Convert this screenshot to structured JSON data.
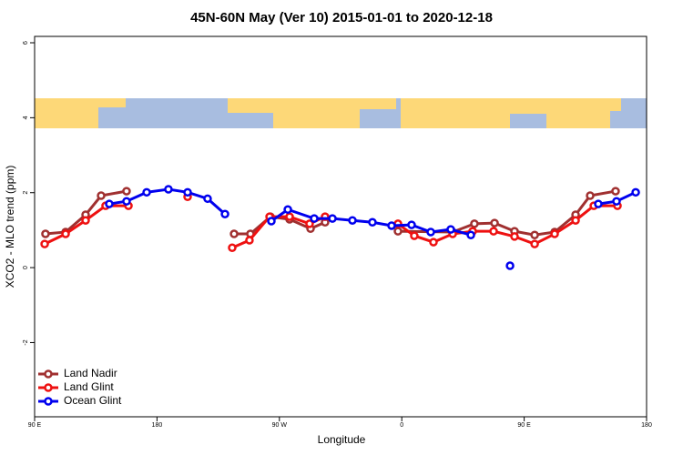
{
  "chart_data": {
    "type": "line",
    "title": "45N-60N May (Ver 10)   2015-01-01 to 2020-12-18",
    "x_label": "Longitude",
    "y_label": "XCO2 - MLO trend (ppm)",
    "xlim": [
      90,
      540
    ],
    "ylim": [
      -3.98,
      6.17
    ],
    "xticks": [
      {
        "value": 90,
        "label": "90 E"
      },
      180,
      {
        "value": 270,
        "label": "90 W"
      },
      {
        "value": 360,
        "label": "0"
      },
      {
        "value": 450,
        "label": "90 E"
      },
      {
        "value": 540,
        "label": "180"
      }
    ],
    "yticks": [
      -2,
      0,
      2,
      4,
      6
    ],
    "legend": "bottom-left",
    "series": [
      {
        "name": "Land Nadir",
        "color": "#a03030",
        "x": [
          98,
          112.8,
          127.5,
          138.9,
          157.6,
          null,
          236.7,
          248.7,
          263.4,
          277.5,
          292.9,
          303.6,
          null,
          357.2,
          397.4,
          413.4,
          428.2,
          442.9,
          457.7,
          472.4,
          487.8,
          498.5,
          517.2
        ],
        "values": [
          0.9,
          0.95,
          1.41,
          1.92,
          2.04,
          null,
          0.9,
          0.9,
          1.36,
          1.29,
          1.04,
          1.21,
          null,
          0.97,
          0.95,
          1.17,
          1.19,
          0.97,
          0.87,
          0.95,
          1.41,
          1.92,
          2.04
        ]
      },
      {
        "name": "Land Glint",
        "color": "#ee1111",
        "x": [
          97.4,
          112.8,
          127.5,
          142.2,
          159,
          null,
          202.5,
          null,
          235.3,
          248,
          262.8,
          277.5,
          292.2,
          303.6,
          null,
          357.2,
          369.2,
          383.3,
          397.4,
          412.1,
          427.5,
          442.9,
          457.7,
          472.4,
          487.8,
          501.2,
          518.6
        ],
        "values": [
          0.63,
          0.9,
          1.26,
          1.65,
          1.65,
          null,
          1.89,
          null,
          0.53,
          0.73,
          1.36,
          1.36,
          1.17,
          1.36,
          null,
          1.17,
          0.85,
          0.68,
          0.9,
          0.97,
          0.97,
          0.83,
          0.63,
          0.9,
          1.26,
          1.65,
          1.65
        ]
      },
      {
        "name": "Ocean Glint",
        "color": "#0000ee",
        "x": [
          144.9,
          157.6,
          172.4,
          188.4,
          202.5,
          217.2,
          230,
          null,
          264.1,
          276.2,
          295.6,
          309,
          323.7,
          338.4,
          352.5,
          367.2,
          381.3,
          396,
          410.8,
          null,
          439.6,
          null,
          504.5,
          517.9,
          532
        ],
        "values": [
          1.7,
          1.77,
          2.01,
          2.09,
          2.01,
          1.84,
          1.43,
          null,
          1.24,
          1.55,
          1.31,
          1.31,
          1.26,
          1.21,
          1.12,
          1.14,
          0.95,
          1.02,
          0.87,
          null,
          0.05,
          null,
          1.7,
          1.77,
          2.01
        ]
      }
    ]
  }
}
